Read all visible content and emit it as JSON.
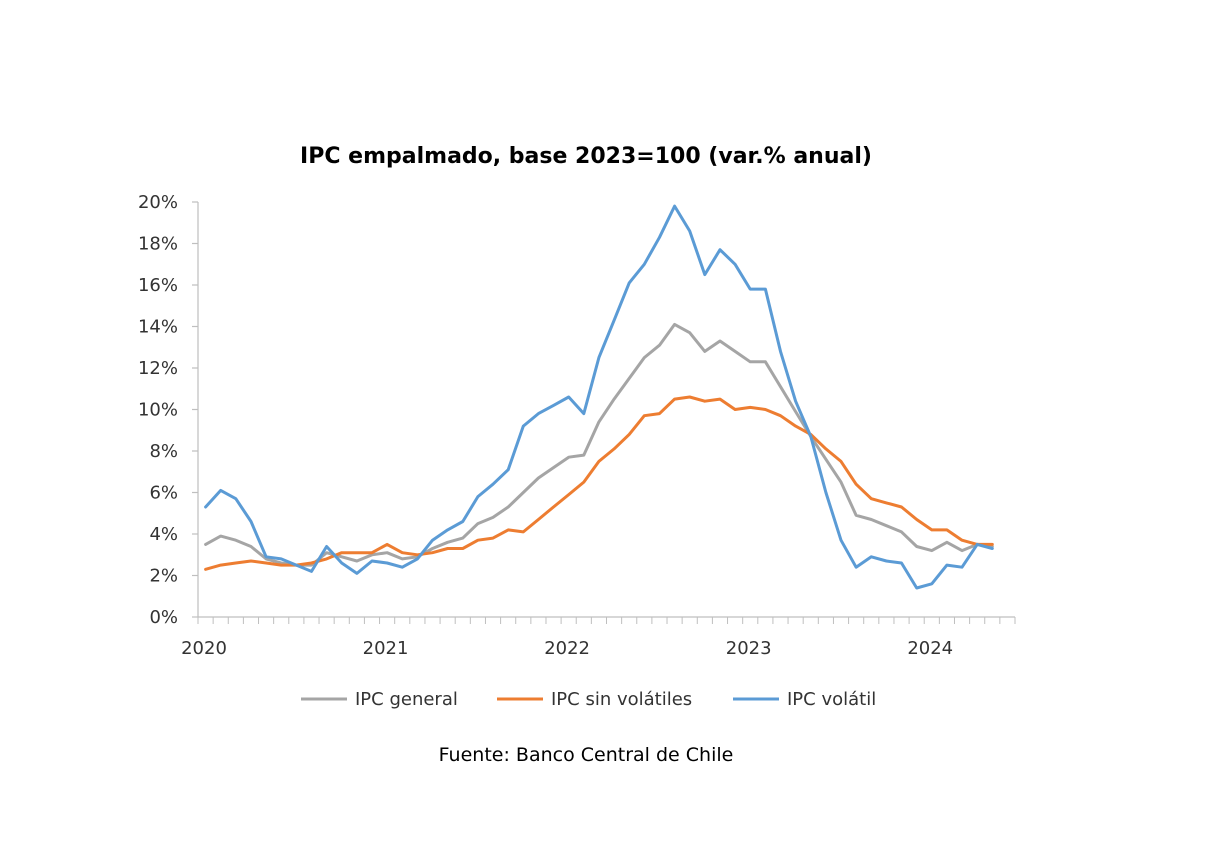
{
  "chart_data": {
    "type": "line",
    "title": "IPC empalmado, base 2023=100 (var.% anual)",
    "xlabel": "",
    "ylabel": "",
    "ylim": [
      0,
      20
    ],
    "y_ticks": [
      "0%",
      "2%",
      "4%",
      "6%",
      "8%",
      "10%",
      "12%",
      "14%",
      "16%",
      "18%",
      "20%"
    ],
    "x_tick_labels": [
      "2020",
      "2021",
      "2022",
      "2023",
      "2024"
    ],
    "x_start": "2020-01",
    "x_end": "2024-05",
    "x_frequency": "monthly",
    "grid": false,
    "legend_position": "bottom",
    "series": [
      {
        "name": "IPC general",
        "color": "#a5a5a5",
        "values": [
          3.5,
          3.9,
          3.7,
          3.4,
          2.8,
          2.6,
          2.5,
          2.5,
          3.1,
          2.9,
          2.7,
          3.0,
          3.1,
          2.8,
          2.9,
          3.3,
          3.6,
          3.8,
          4.5,
          4.8,
          5.3,
          6.0,
          6.7,
          7.2,
          7.7,
          7.8,
          9.4,
          10.5,
          11.5,
          12.5,
          13.1,
          14.1,
          13.7,
          12.8,
          13.3,
          12.8,
          12.3,
          12.3,
          11.1,
          9.9,
          8.7,
          7.6,
          6.5,
          4.9,
          4.7,
          4.4,
          4.1,
          3.4,
          3.2,
          3.6,
          3.2,
          3.5,
          3.4
        ]
      },
      {
        "name": "IPC sin volátiles",
        "color": "#ed7d31",
        "values": [
          2.3,
          2.5,
          2.6,
          2.7,
          2.6,
          2.5,
          2.5,
          2.6,
          2.8,
          3.1,
          3.1,
          3.1,
          3.5,
          3.1,
          3.0,
          3.1,
          3.3,
          3.3,
          3.7,
          3.8,
          4.2,
          4.1,
          4.7,
          5.3,
          5.9,
          6.5,
          7.5,
          8.1,
          8.8,
          9.7,
          9.8,
          10.5,
          10.6,
          10.4,
          10.5,
          10.0,
          10.1,
          10.0,
          9.7,
          9.2,
          8.8,
          8.1,
          7.5,
          6.4,
          5.7,
          5.5,
          5.3,
          4.7,
          4.2,
          4.2,
          3.7,
          3.5,
          3.5
        ]
      },
      {
        "name": "IPC volátil",
        "color": "#5b9bd5",
        "values": [
          5.3,
          6.1,
          5.7,
          4.6,
          2.9,
          2.8,
          2.5,
          2.2,
          3.4,
          2.6,
          2.1,
          2.7,
          2.6,
          2.4,
          2.8,
          3.7,
          4.2,
          4.6,
          5.8,
          6.4,
          7.1,
          9.2,
          9.8,
          10.2,
          10.6,
          9.8,
          12.5,
          14.3,
          16.1,
          17.0,
          18.3,
          19.8,
          18.6,
          16.5,
          17.7,
          17.0,
          15.8,
          15.8,
          12.8,
          10.4,
          8.7,
          6.0,
          3.7,
          2.4,
          2.9,
          2.7,
          2.6,
          1.4,
          1.6,
          2.5,
          2.4,
          3.5,
          3.3
        ]
      }
    ]
  },
  "source_note": "Fuente: Banco Central de Chile"
}
